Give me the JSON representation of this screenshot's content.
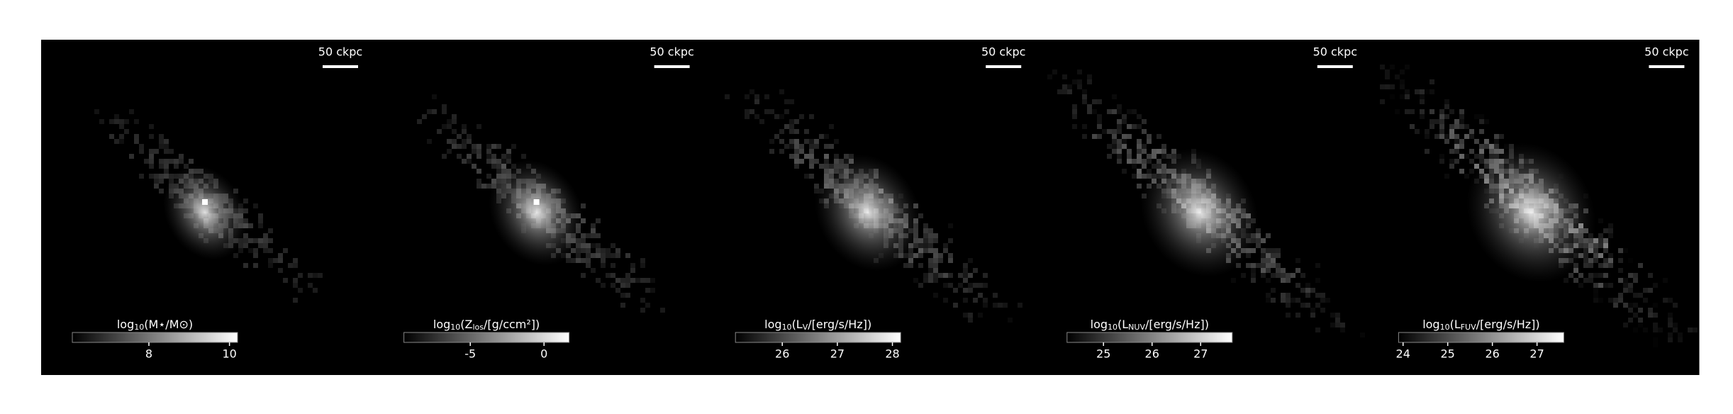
{
  "chart_data": [
    {
      "type": "image",
      "cmap": "gray",
      "label_parts": [
        "log",
        "10",
        "(M⋆/M⊙)"
      ],
      "clim": [
        6.1,
        10.2
      ],
      "ticks": [
        8,
        10
      ],
      "scalebar": "50 ckpc"
    },
    {
      "type": "image",
      "cmap": "gray",
      "label_parts": [
        "log",
        "10",
        "(Z",
        "los",
        "/[g/ccm²])"
      ],
      "clim": [
        -9.5,
        1.7
      ],
      "ticks": [
        -5,
        0
      ],
      "scalebar": "50 ckpc"
    },
    {
      "type": "image",
      "cmap": "gray",
      "label_parts": [
        "log",
        "10",
        "(L",
        "V",
        "/[erg/s/Hz])"
      ],
      "clim": [
        25.15,
        28.15
      ],
      "ticks": [
        26,
        27,
        28
      ],
      "scalebar": "50 ckpc"
    },
    {
      "type": "image",
      "cmap": "gray",
      "label_parts": [
        "log",
        "10",
        "(L",
        "NUV",
        "/[erg/s/Hz])"
      ],
      "clim": [
        24.25,
        27.65
      ],
      "ticks": [
        25,
        26,
        27
      ],
      "scalebar": "50 ckpc"
    },
    {
      "type": "image",
      "cmap": "gray",
      "label_parts": [
        "log",
        "10",
        "(L",
        "FUV",
        "/[erg/s/Hz])"
      ],
      "clim": [
        23.9,
        27.6
      ],
      "ticks": [
        24,
        25,
        26,
        27
      ],
      "scalebar": "50 ckpc"
    }
  ]
}
